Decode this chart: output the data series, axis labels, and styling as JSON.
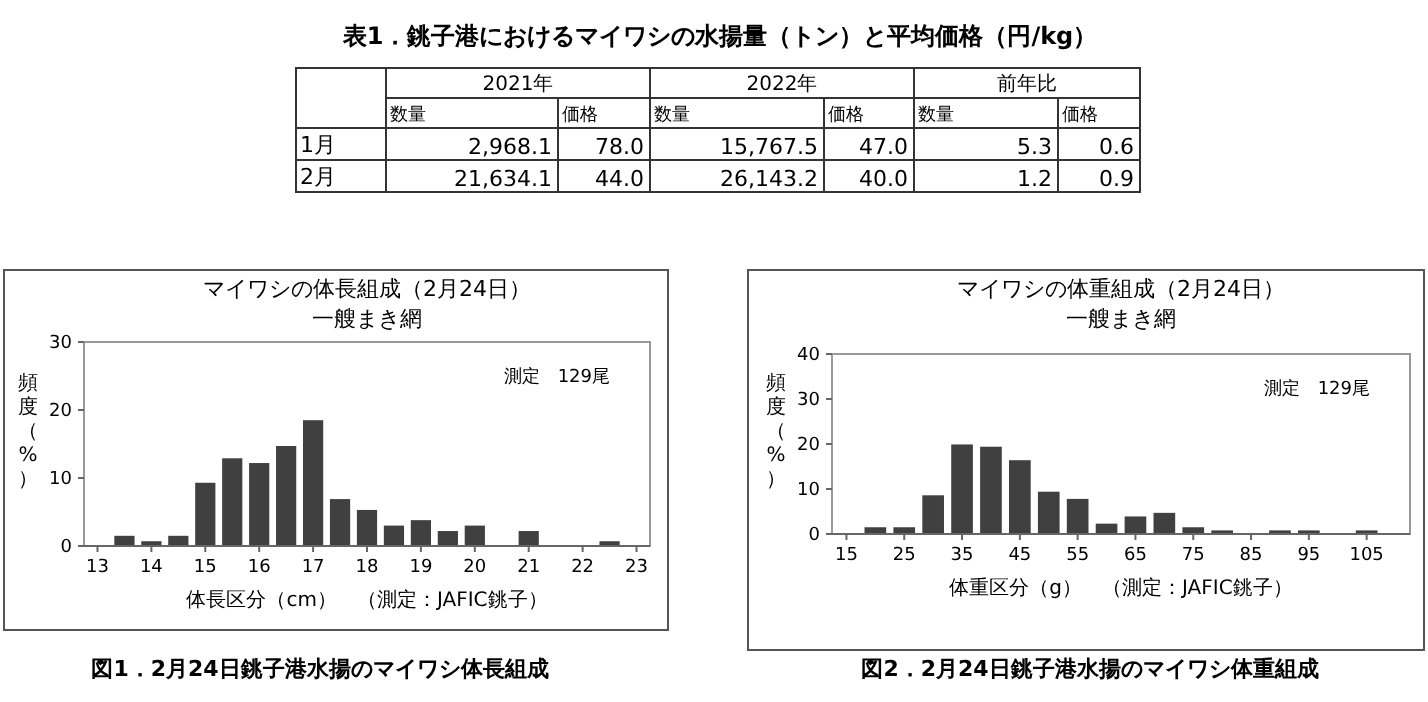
{
  "chart_data": [
    {
      "type": "other",
      "title": "表1．銚子港におけるマイワシの水揚量（トン）と平均価格（円/kg）",
      "annotations": [
        "2021年",
        "2022年",
        "前年比"
      ],
      "categories": [
        "数量",
        "価格",
        "数量",
        "価格",
        "数量",
        "価格"
      ],
      "y_categories": [
        "1月",
        "2月"
      ],
      "cell_labels": [
        [
          "2,968.1",
          "78.0",
          "15,767.5",
          "47.0",
          "5.3",
          "0.6"
        ],
        [
          "21,634.1",
          "44.0",
          "26,143.2",
          "40.0",
          "1.2",
          "0.9"
        ]
      ]
    },
    {
      "type": "histogram",
      "title": "マイワシの体長組成（2月24日）",
      "subtitle": "一艘まき網",
      "xlabel": "体長区分（cm）　（測定：JAFIC銚子）",
      "ylabel": "頻度（%）",
      "annotations": [
        "測定　129尾",
        "図1．2月24日銚子港水揚のマイワシ体長組成"
      ],
      "bins": [
        13.25,
        13.75,
        14.25,
        14.75,
        15.25,
        15.75,
        16.25,
        16.75,
        17.25,
        17.75,
        18.25,
        18.75,
        19.25,
        19.75,
        20.25,
        20.75,
        21.25,
        21.75,
        22.25,
        22.75
      ],
      "values": [
        1.5,
        0.7,
        1.5,
        9.3,
        12.9,
        12.2,
        14.7,
        18.5,
        6.9,
        5.3,
        3.0,
        3.8,
        2.2,
        3.0,
        0,
        2.2,
        0,
        0,
        0.7
      ],
      "color": "#404040",
      "xlim": [
        12.75,
        23.25
      ],
      "xticks": [
        13,
        14,
        15,
        16,
        17,
        18,
        19,
        20,
        21,
        22,
        23
      ],
      "ylim": [
        0,
        30
      ],
      "yticks": [
        0,
        10,
        20,
        30
      ]
    },
    {
      "type": "histogram",
      "title": "マイワシの体重組成（2月24日）",
      "subtitle": "一艘まき網",
      "xlabel": "体重区分（g）　（測定：JAFIC銚子）",
      "ylabel": "頻度（%）",
      "annotations": [
        "測定　129尾",
        "図2．2月24日銚子港水揚のマイワシ体重組成"
      ],
      "bins": [
        17.5,
        22.5,
        27.5,
        32.5,
        37.5,
        42.5,
        47.5,
        52.5,
        57.5,
        62.5,
        67.5,
        72.5,
        77.5,
        82.5,
        87.5,
        92.5,
        97.5,
        102.5,
        107.5
      ],
      "values": [
        1.5,
        1.5,
        8.6,
        19.9,
        19.4,
        16.4,
        9.4,
        7.8,
        2.3,
        3.9,
        4.7,
        1.5,
        0.8,
        0,
        0.8,
        0.8,
        0,
        0.8
      ],
      "color": "#404040",
      "xlim": [
        12.5,
        112.5
      ],
      "xticks": [
        15,
        25,
        35,
        45,
        55,
        65,
        75,
        85,
        95,
        105
      ],
      "ylim": [
        0,
        40
      ],
      "yticks": [
        0,
        10,
        20,
        30,
        40
      ]
    }
  ]
}
